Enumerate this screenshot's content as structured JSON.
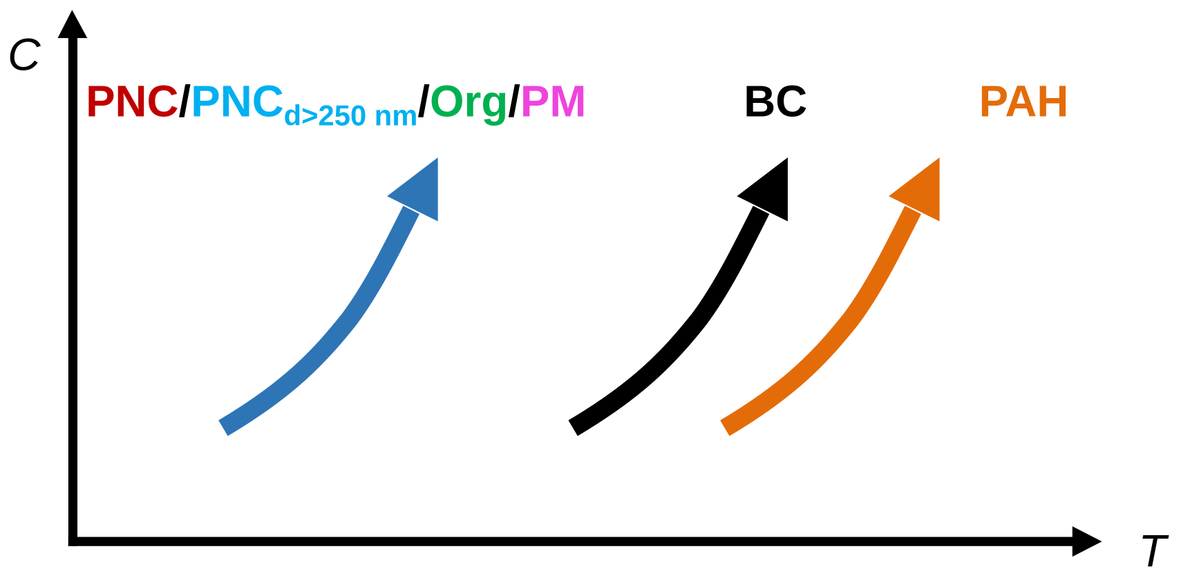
{
  "axes": {
    "y_label": "C",
    "x_label": "T"
  },
  "groups": [
    {
      "label_parts": [
        "PNC",
        "/",
        "PNC",
        "d>250 nm",
        "/",
        "Org",
        "/",
        "PM"
      ]
    },
    {
      "label_parts": [
        "BC"
      ]
    },
    {
      "label_parts": [
        "PAH"
      ]
    }
  ]
}
